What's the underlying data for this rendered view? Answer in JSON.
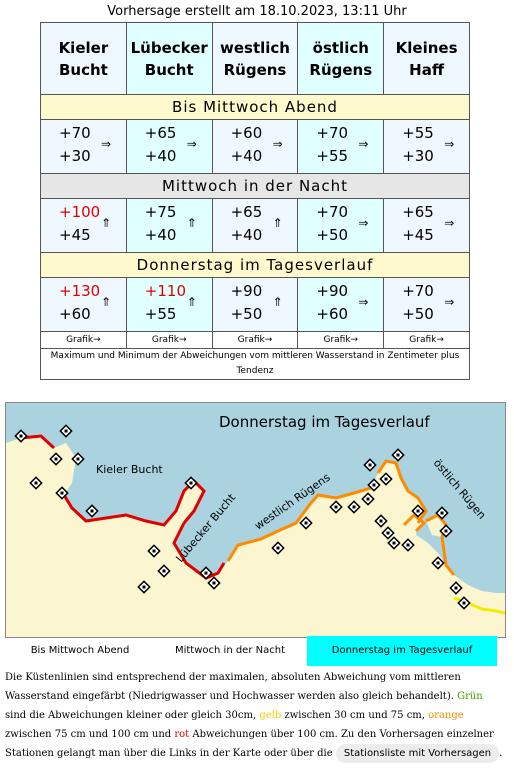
{
  "created": "Vorhersage erstellt am 18.10.2023, 13:11 Uhr",
  "regions": [
    {
      "line1": "Kieler",
      "line2": "Bucht"
    },
    {
      "line1": "Lübecker",
      "line2": "Bucht"
    },
    {
      "line1": "westlich",
      "line2": "Rügens"
    },
    {
      "line1": "östlich",
      "line2": "Rügens"
    },
    {
      "line1": "Kleines",
      "line2": "Haff"
    }
  ],
  "periods": [
    {
      "label": "Bis Mittwoch Abend",
      "cells": [
        {
          "max": "+70",
          "min": "+30",
          "arrow": "⇒"
        },
        {
          "max": "+65",
          "min": "+40",
          "arrow": "⇒"
        },
        {
          "max": "+60",
          "min": "+40",
          "arrow": "⇒"
        },
        {
          "max": "+70",
          "min": "+55",
          "arrow": "⇒"
        },
        {
          "max": "+55",
          "min": "+30",
          "arrow": "⇒"
        }
      ]
    },
    {
      "label": "Mittwoch in der Nacht",
      "cells": [
        {
          "max": "+100",
          "min": "+45",
          "arrow": "⇑"
        },
        {
          "max": "+75",
          "min": "+40",
          "arrow": "⇑"
        },
        {
          "max": "+65",
          "min": "+40",
          "arrow": "⇑"
        },
        {
          "max": "+70",
          "min": "+50",
          "arrow": "⇒"
        },
        {
          "max": "+65",
          "min": "+45",
          "arrow": "⇒"
        }
      ]
    },
    {
      "label": "Donnerstag im Tagesverlauf",
      "cells": [
        {
          "max": "+130",
          "min": "+60",
          "arrow": "⇑"
        },
        {
          "max": "+110",
          "min": "+55",
          "arrow": "⇑"
        },
        {
          "max": "+90",
          "min": "+50",
          "arrow": "⇑"
        },
        {
          "max": "+90",
          "min": "+60",
          "arrow": "⇒"
        },
        {
          "max": "+70",
          "min": "+50",
          "arrow": "⇒"
        }
      ]
    }
  ],
  "grafik_label": "Grafik→",
  "footnote": "Maximum und Minimum der Abweichungen vom mittleren Wasserstand in Zentimeter plus Tendenz",
  "map": {
    "title": "Donnerstag im Tagesverlauf",
    "labels": {
      "kieler": "Kieler Bucht",
      "luebecker": "Lübecker Bucht",
      "west": "westlich Rügens",
      "ost": "östlich Rügen"
    },
    "colors": {
      "water": "#aad3df",
      "land": "#fbf6d0",
      "red": "#e00000",
      "orange": "#ff8a00",
      "yellow": "#f5ea00"
    }
  },
  "tabs": [
    "Bis Mittwoch Abend",
    "Mittwoch in der Nacht",
    "Donnerstag im Tagesverlauf"
  ],
  "active_tab": 2,
  "desc": {
    "p1": "Die Küstenlinien sind entsprechend der maximalen, absoluten Abweichung vom mittleren Wasserstand eingefärbt (Niedrigwasser und Hochwasser werden also gleich behandelt).",
    "green": "Grün",
    "p2": "sind die Abweichungen kleiner oder gleich 30cm,",
    "yellow": "gelb",
    "p3": "zwischen 30 cm und 75 cm,",
    "orange": "orange",
    "p4": "zwischen 75 cm und 100 cm und",
    "red": "rot",
    "p5": "Abweichungen über 100 cm. Zu den Vorhersagen einzelner Stationen gelangt man über die Links in der Karte oder über die",
    "button": "Stationsliste mit Vorhersagen",
    "end": "."
  }
}
